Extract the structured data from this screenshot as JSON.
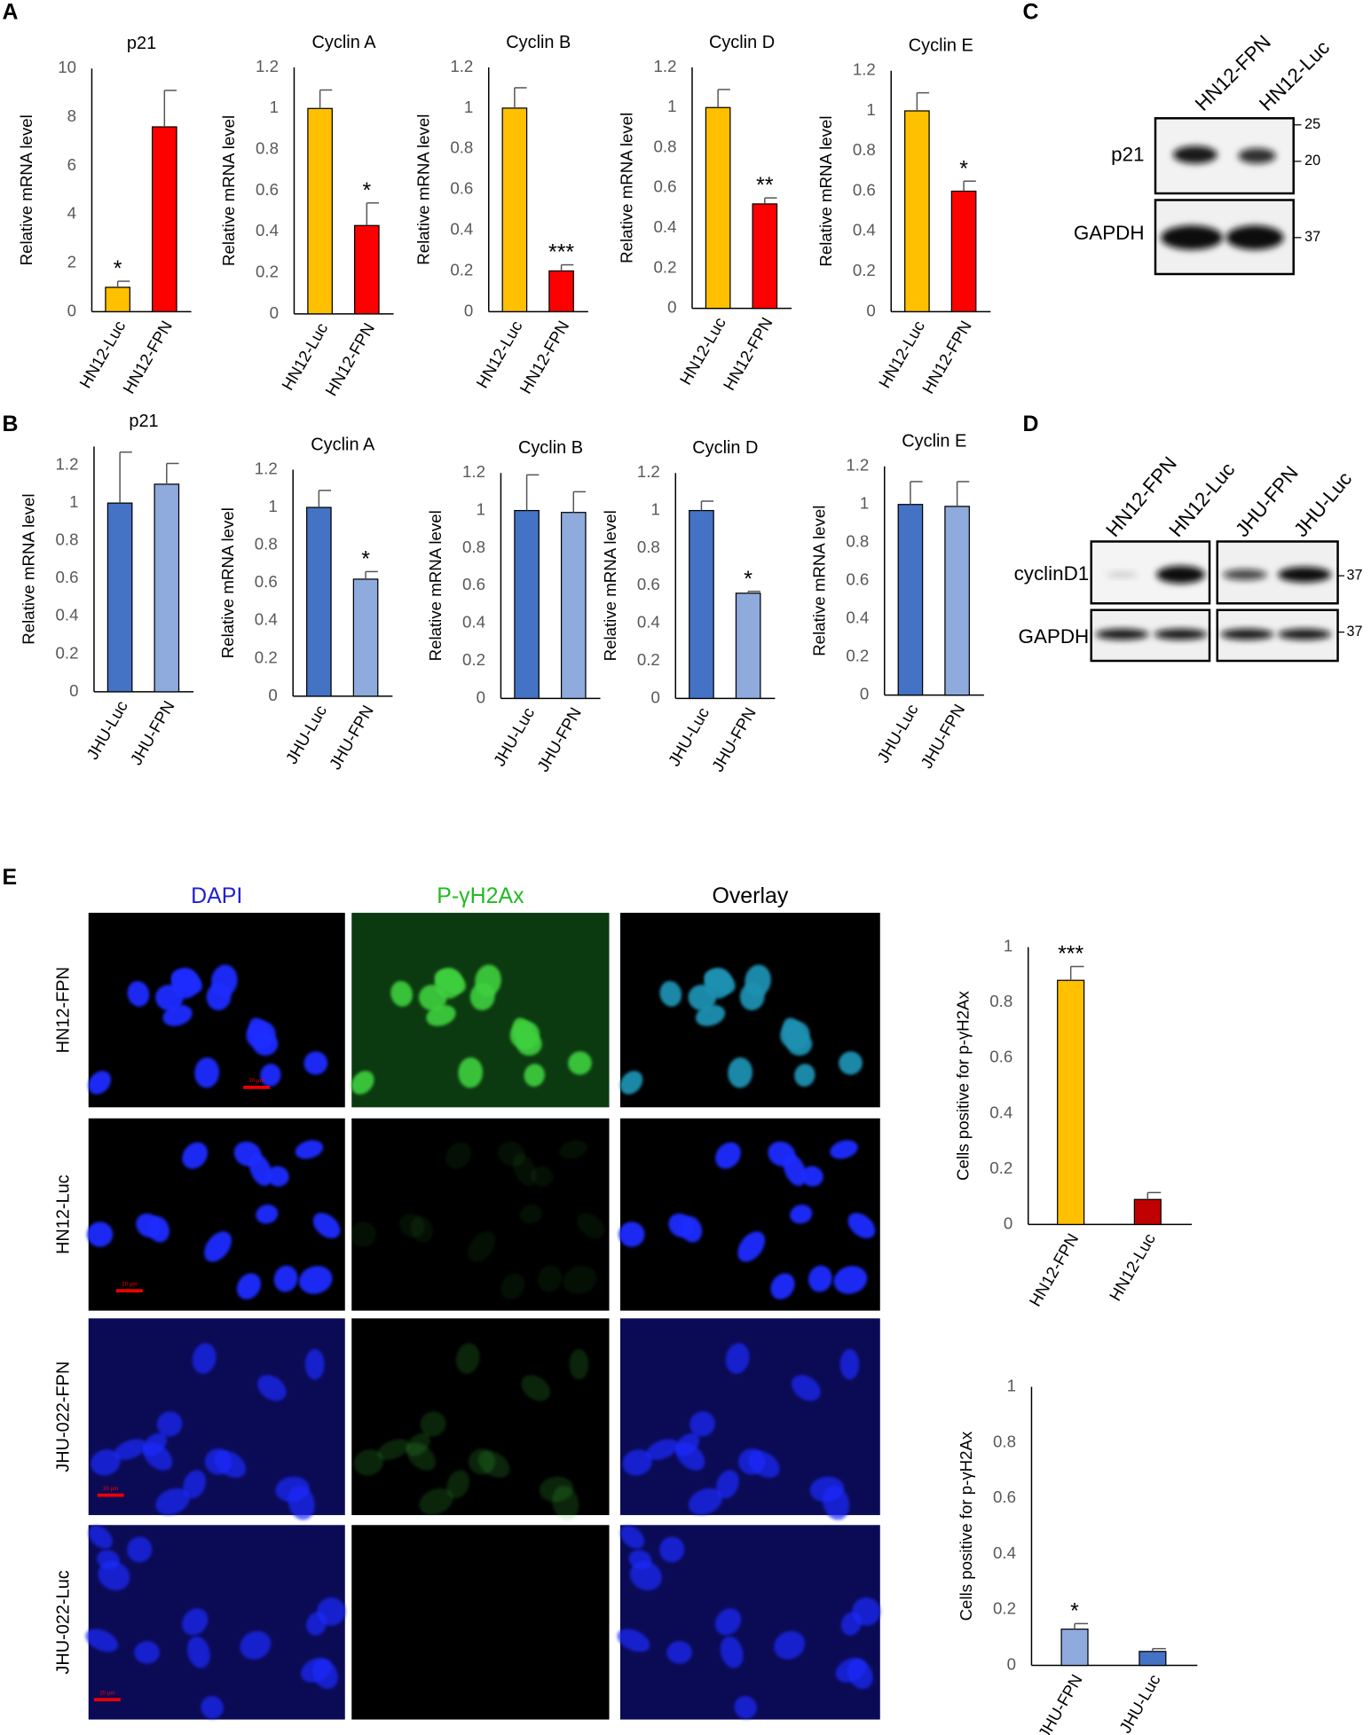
{
  "chart_data": [
    {
      "type": "bar",
      "title": "p21",
      "ylabel": "Relative mRNA level",
      "categories": [
        "HN12-Luc",
        "HN12-FPN"
      ],
      "values": [
        1.0,
        7.6
      ],
      "errors": [
        0.25,
        1.5
      ],
      "colors": [
        "#FFC000",
        "#FF0000"
      ],
      "significance": [
        "*",
        null
      ],
      "ylim": [
        0,
        10
      ],
      "yticks": [
        0,
        2,
        4,
        6,
        8,
        10
      ]
    },
    {
      "type": "bar",
      "title": "Cyclin A",
      "ylabel": "Relative mRNA level",
      "categories": [
        "HN12-Luc",
        "HN12-FPN"
      ],
      "values": [
        1.0,
        0.43
      ],
      "errors": [
        0.09,
        0.11
      ],
      "colors": [
        "#FFC000",
        "#FF0000"
      ],
      "significance": [
        null,
        "*"
      ],
      "ylim": [
        0,
        1.2
      ],
      "yticks": [
        0,
        0.2,
        0.4,
        0.6,
        0.8,
        1,
        1.2
      ]
    },
    {
      "type": "bar",
      "title": "Cyclin B",
      "ylabel": "Relative mRNA level",
      "categories": [
        "HN12-Luc",
        "HN12-FPN"
      ],
      "values": [
        1.0,
        0.2
      ],
      "errors": [
        0.1,
        0.03
      ],
      "colors": [
        "#FFC000",
        "#FF0000"
      ],
      "significance": [
        null,
        "***"
      ],
      "ylim": [
        0,
        1.2
      ],
      "yticks": [
        0,
        0.2,
        0.4,
        0.6,
        0.8,
        1,
        1.2
      ]
    },
    {
      "type": "bar",
      "title": "Cyclin D",
      "ylabel": "Relative mRNA level",
      "categories": [
        "HN12-Luc",
        "HN12-FPN"
      ],
      "values": [
        1.0,
        0.52
      ],
      "errors": [
        0.09,
        0.03
      ],
      "colors": [
        "#FFC000",
        "#FF0000"
      ],
      "significance": [
        null,
        "**"
      ],
      "ylim": [
        0,
        1.2
      ],
      "yticks": [
        0,
        0.2,
        0.4,
        0.6,
        0.8,
        1,
        1.2
      ]
    },
    {
      "type": "bar",
      "title": "Cyclin E",
      "ylabel": "Relative mRNA level",
      "categories": [
        "HN12-Luc",
        "HN12-FPN"
      ],
      "values": [
        1.0,
        0.6
      ],
      "errors": [
        0.09,
        0.05
      ],
      "colors": [
        "#FFC000",
        "#FF0000"
      ],
      "significance": [
        null,
        "*"
      ],
      "ylim": [
        0,
        1.2
      ],
      "yticks": [
        0,
        0.2,
        0.4,
        0.6,
        0.8,
        1,
        1.2
      ]
    },
    {
      "type": "bar",
      "title": "p21",
      "ylabel": "Relative mRNA level",
      "categories": [
        "JHU-Luc",
        "JHU-FPN"
      ],
      "values": [
        1.0,
        1.1
      ],
      "errors": [
        0.27,
        0.11
      ],
      "colors": [
        "#4472C4",
        "#8FAADC"
      ],
      "significance": [
        null,
        null
      ],
      "ylim": [
        0,
        1.3
      ],
      "yticks": [
        0,
        0.2,
        0.4,
        0.6,
        0.8,
        1,
        1.2
      ]
    },
    {
      "type": "bar",
      "title": "Cyclin A",
      "ylabel": "Relative mRNA level",
      "categories": [
        "JHU-Luc",
        "JHU-FPN"
      ],
      "values": [
        1.0,
        0.62
      ],
      "errors": [
        0.09,
        0.04
      ],
      "colors": [
        "#4472C4",
        "#8FAADC"
      ],
      "significance": [
        null,
        "*"
      ],
      "ylim": [
        0,
        1.2
      ],
      "yticks": [
        0,
        0.2,
        0.4,
        0.6,
        0.8,
        1,
        1.2
      ]
    },
    {
      "type": "bar",
      "title": "Cyclin B",
      "ylabel": "Relative mRNA level",
      "categories": [
        "JHU-Luc",
        "JHU-FPN"
      ],
      "values": [
        1.0,
        0.99
      ],
      "errors": [
        0.19,
        0.11
      ],
      "colors": [
        "#4472C4",
        "#8FAADC"
      ],
      "significance": [
        null,
        null
      ],
      "ylim": [
        0,
        1.2
      ],
      "yticks": [
        0,
        0.2,
        0.4,
        0.6,
        0.8,
        1,
        1.2
      ]
    },
    {
      "type": "bar",
      "title": "Cyclin D",
      "ylabel": "Relative mRNA level",
      "categories": [
        "JHU-Luc",
        "JHU-FPN"
      ],
      "values": [
        1.0,
        0.56
      ],
      "errors": [
        0.05,
        0.01
      ],
      "colors": [
        "#4472C4",
        "#8FAADC"
      ],
      "significance": [
        null,
        "*"
      ],
      "ylim": [
        0,
        1.2
      ],
      "yticks": [
        0,
        0.2,
        0.4,
        0.6,
        0.8,
        1,
        1.2
      ]
    },
    {
      "type": "bar",
      "title": "Cyclin E",
      "ylabel": "Relative mRNA level",
      "categories": [
        "JHU-Luc",
        "JHU-FPN"
      ],
      "values": [
        1.0,
        0.99
      ],
      "errors": [
        0.12,
        0.13
      ],
      "colors": [
        "#4472C4",
        "#8FAADC"
      ],
      "significance": [
        null,
        null
      ],
      "ylim": [
        0,
        1.2
      ],
      "yticks": [
        0,
        0.2,
        0.4,
        0.6,
        0.8,
        1,
        1.2
      ]
    },
    {
      "type": "bar",
      "ylabel": "Cells positive for p-γH2Ax",
      "categories": [
        "HN12-FPN",
        "HN12-Luc"
      ],
      "values": [
        0.88,
        0.09
      ],
      "errors": [
        0.05,
        0.025
      ],
      "colors": [
        "#FFC000",
        "#C00000"
      ],
      "significance": [
        "***",
        null
      ],
      "ylim": [
        0,
        1
      ],
      "yticks": [
        0,
        0.2,
        0.4,
        0.6,
        0.8,
        1
      ]
    },
    {
      "type": "bar",
      "ylabel": "Cells positive for p-γH2Ax",
      "categories": [
        "JHU-FPN",
        "JHU-Luc"
      ],
      "values": [
        0.13,
        0.05
      ],
      "errors": [
        0.02,
        0.01
      ],
      "colors": [
        "#8FAADC",
        "#4472C4"
      ],
      "significance": [
        "*",
        null
      ],
      "ylim": [
        0,
        1
      ],
      "yticks": [
        0,
        0.2,
        0.4,
        0.6,
        0.8,
        1
      ]
    }
  ],
  "panel_labels": [
    "A",
    "B",
    "C",
    "D",
    "E"
  ],
  "blot_c": {
    "lanes": [
      "HN12-FPN",
      "HN12-Luc"
    ],
    "rows": [
      "p21",
      "GAPDH"
    ],
    "markers": [
      "25",
      "20",
      "37"
    ]
  },
  "blot_d": {
    "lanes": [
      "HN12-FPN",
      "HN12-Luc",
      "JHU-FPN",
      "JHU-Luc"
    ],
    "rows": [
      "cyclinD1",
      "GAPDH"
    ],
    "markers": [
      "37",
      "37"
    ]
  },
  "microscopy": {
    "columns": [
      "DAPI",
      "P-γH2Ax",
      "Overlay"
    ],
    "rows": [
      "HN12-FPN",
      "HN12-Luc",
      "JHU-022-FPN",
      "JHU-022-Luc"
    ],
    "scale_bar": "20 µm"
  }
}
